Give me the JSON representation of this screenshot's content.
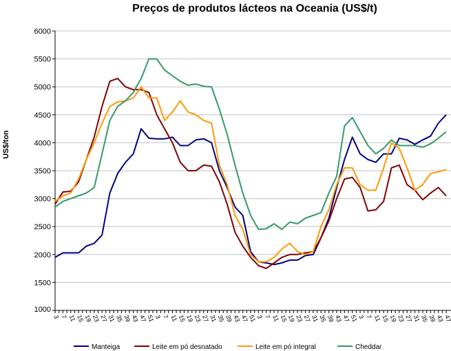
{
  "chart_data": {
    "type": "line",
    "title": "Preços de produtos lácteos na Oceania (US$/t)",
    "xlabel": "",
    "ylabel": "US$/ton",
    "ylim": [
      1000,
      6000
    ],
    "yticks": [
      1000,
      1500,
      2000,
      2500,
      3000,
      3500,
      4000,
      4500,
      5000,
      5500,
      6000
    ],
    "grid": true,
    "legend_position": "bottom",
    "categories": [
      "3",
      "7",
      "11",
      "15",
      "19",
      "23",
      "27",
      "31",
      "35",
      "39",
      "43",
      "47",
      "51",
      "3",
      "7",
      "11",
      "15",
      "19",
      "23",
      "27",
      "31",
      "35",
      "39",
      "43",
      "47",
      "51",
      "3",
      "7",
      "11",
      "15",
      "19",
      "23",
      "27",
      "31",
      "35",
      "39",
      "43",
      "47",
      "51",
      "3",
      "7",
      "11",
      "15",
      "19",
      "23",
      "27",
      "31",
      "35",
      "39",
      "43",
      "47"
    ],
    "series": [
      {
        "name": "Manteiga",
        "color": "#000080",
        "values": [
          1950,
          2030,
          2030,
          2030,
          2150,
          2200,
          2350,
          3100,
          3450,
          3650,
          3800,
          4250,
          4080,
          4070,
          4070,
          4100,
          3950,
          3950,
          4050,
          4070,
          4000,
          3500,
          3200,
          2850,
          2700,
          2050,
          1870,
          1850,
          1820,
          1850,
          1900,
          1900,
          1980,
          2000,
          2300,
          2650,
          3200,
          3700,
          4100,
          3800,
          3700,
          3650,
          3800,
          3800,
          4080,
          4050,
          3970,
          4050,
          4120,
          4350,
          4500
        ]
      },
      {
        "name": "Leite em pó desnatado",
        "color": "#800000",
        "values": [
          2900,
          3120,
          3130,
          3300,
          3700,
          4100,
          4650,
          5100,
          5150,
          5000,
          4950,
          4950,
          4900,
          4500,
          4250,
          4000,
          3650,
          3500,
          3500,
          3600,
          3580,
          3300,
          2900,
          2400,
          2150,
          1950,
          1800,
          1750,
          1850,
          1950,
          2000,
          2000,
          2030,
          2050,
          2300,
          2600,
          3000,
          3350,
          3380,
          3200,
          2780,
          2800,
          2950,
          3550,
          3600,
          3250,
          3150,
          2980,
          3100,
          3200,
          3050
        ]
      },
      {
        "name": "Leite em pó integral",
        "color": "#FF9900",
        "values": [
          2950,
          3050,
          3100,
          3350,
          3700,
          4000,
          4350,
          4650,
          4730,
          4750,
          4800,
          5000,
          4800,
          4800,
          4400,
          4550,
          4750,
          4550,
          4500,
          4400,
          4350,
          3600,
          3250,
          2700,
          2450,
          2000,
          1870,
          1870,
          1950,
          2100,
          2200,
          2050,
          2000,
          2050,
          2500,
          2800,
          3250,
          3550,
          3550,
          3250,
          3150,
          3150,
          3550,
          4000,
          3900,
          3550,
          3150,
          3250,
          3450,
          3480,
          3520
        ]
      },
      {
        "name": "Cheddar",
        "color": "#339966",
        "values": [
          2850,
          2950,
          3000,
          3050,
          3100,
          3200,
          3800,
          4400,
          4650,
          4750,
          4900,
          5150,
          5500,
          5500,
          5300,
          5200,
          5100,
          5030,
          5050,
          5010,
          5000,
          4600,
          4150,
          3600,
          3100,
          2700,
          2450,
          2460,
          2550,
          2450,
          2580,
          2550,
          2650,
          2700,
          2750,
          3100,
          3400,
          4300,
          4450,
          4200,
          3950,
          3800,
          3900,
          4050,
          3950,
          3950,
          3950,
          3920,
          3980,
          4080,
          4200
        ]
      }
    ]
  }
}
